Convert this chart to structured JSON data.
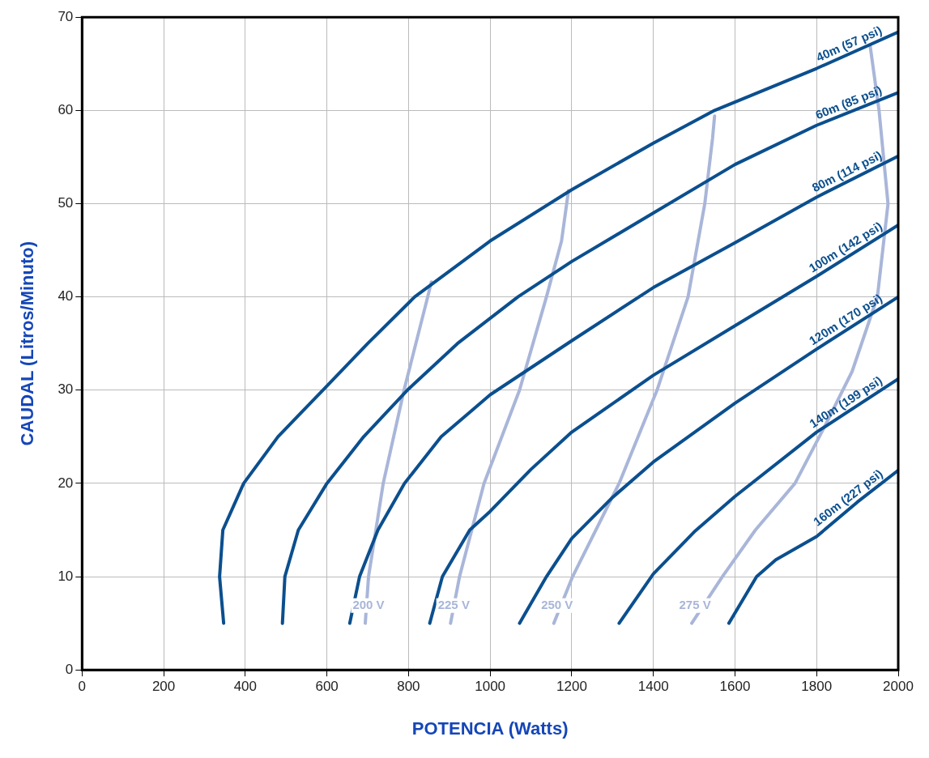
{
  "chart_data": {
    "type": "line",
    "xlabel": "POTENCIA (Watts)",
    "ylabel": "CAUDAL (Litros/Minuto)",
    "xlim": [
      0,
      2000
    ],
    "xticks": [
      0,
      200,
      400,
      600,
      800,
      1000,
      1200,
      1400,
      1600,
      1800,
      2000
    ],
    "ylim": [
      0,
      70
    ],
    "yticks": [
      0,
      10,
      20,
      30,
      40,
      50,
      60,
      70
    ],
    "grid": true,
    "legend": false,
    "marker": "none",
    "line_style": "solid",
    "series": [
      {
        "name": "40m (57 psi)",
        "color": "#0b4f8e",
        "x": [
          347,
          337,
          345,
          396,
          480,
          590,
          700,
          815,
          1000,
          1200,
          1400,
          1550,
          1800,
          2000
        ],
        "values": [
          5,
          10,
          15,
          20,
          25,
          30,
          35,
          40,
          46,
          51.5,
          56.5,
          60,
          64.5,
          68.4
        ]
      },
      {
        "name": "60m (85 psi)",
        "color": "#0b4f8e",
        "x": [
          491,
          497,
          530,
          600,
          690,
          797,
          920,
          1068,
          1200,
          1400,
          1600,
          1800,
          2000
        ],
        "values": [
          5,
          10,
          15,
          20,
          25,
          30,
          35,
          40,
          43.8,
          49,
          54.2,
          58.4,
          61.9
        ]
      },
      {
        "name": "80m (114 psi)",
        "color": "#0b4f8e",
        "x": [
          656,
          680,
          725,
          790,
          880,
          1000,
          1200,
          1400,
          1600,
          1800,
          2000
        ],
        "values": [
          5,
          10,
          15,
          20,
          25,
          29.5,
          35.3,
          41,
          45.8,
          50.7,
          55.1
        ]
      },
      {
        "name": "100m (142 psi)",
        "color": "#0b4f8e",
        "x": [
          852,
          883,
          950,
          1000,
          1100,
          1200,
          1400,
          1600,
          1800,
          2000
        ],
        "values": [
          5,
          10,
          15,
          17,
          21.5,
          25.5,
          31.6,
          36.9,
          42.2,
          47.7
        ]
      },
      {
        "name": "120m (170 psi)",
        "color": "#0b4f8e",
        "x": [
          1072,
          1138,
          1200,
          1300,
          1400,
          1600,
          1800,
          2000
        ],
        "values": [
          5,
          10,
          14.1,
          18.5,
          22.3,
          28.6,
          34.4,
          40
        ]
      },
      {
        "name": "140m (199 psi)",
        "color": "#0b4f8e",
        "x": [
          1316,
          1400,
          1500,
          1600,
          1800,
          2000
        ],
        "values": [
          5,
          10.3,
          14.8,
          18.6,
          25.5,
          31.2
        ]
      },
      {
        "name": "160m (227 psi)",
        "color": "#0b4f8e",
        "x": [
          1585,
          1653,
          1700,
          1800,
          1900,
          2000
        ],
        "values": [
          5,
          10,
          11.8,
          14.3,
          18,
          21.4
        ]
      },
      {
        "name": "200 V",
        "color": "#a9b6d9",
        "x": [
          694,
          702,
          738,
          789,
          847,
          856
        ],
        "values": [
          5,
          10,
          20,
          30,
          40,
          41.6
        ]
      },
      {
        "name": "225 V",
        "color": "#a9b6d9",
        "x": [
          903,
          925,
          985,
          1072,
          1138,
          1175,
          1192
        ],
        "values": [
          5,
          10,
          20,
          30,
          40,
          46,
          51.4
        ]
      },
      {
        "name": "250 V",
        "color": "#a9b6d9",
        "x": [
          1156,
          1202,
          1316,
          1409,
          1485,
          1526,
          1545,
          1550
        ],
        "values": [
          5,
          10,
          20,
          30,
          40,
          50,
          57,
          59.4
        ]
      },
      {
        "name": "275 V",
        "color": "#a9b6d9",
        "x": [
          1494,
          1569,
          1650,
          1747,
          1822,
          1887,
          1949,
          1975,
          1953,
          1931
        ],
        "values": [
          5,
          10,
          15,
          20,
          26.3,
          32,
          40,
          50,
          60,
          67
        ]
      }
    ]
  }
}
